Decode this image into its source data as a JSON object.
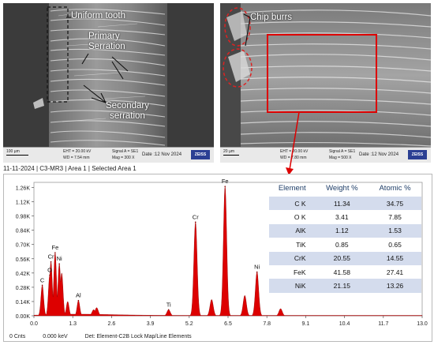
{
  "sem_left": {
    "annotations": {
      "uniform_tooth": "Uniform tooth",
      "primary_serration": "Primary\nSerration",
      "secondary_serration": "Secondary\nserration"
    },
    "info": {
      "scale": "100 µm",
      "eht": "EHT = 20.00 kV",
      "wd": "WD = 7.54 mm",
      "signal": "Signal A = SE1",
      "mag": "Mag =    300 X",
      "date": "Date :12 Nov 2024",
      "logo": "ZEISS"
    }
  },
  "sem_right": {
    "annotations": {
      "chip_burrs": "Chip burrs"
    },
    "info": {
      "scale": "20 µm",
      "eht": "EHT = 20.00 kV",
      "wd": "WD = 7.80 mm",
      "signal": "Signal A = SE1",
      "mag": "Mag =    500 X",
      "date": "Date :12 Nov 2024",
      "logo": "ZEISS"
    }
  },
  "eds": {
    "header": "11-11-2024 | C3-MR3 | Area 1 | Selected Area 1",
    "footer": {
      "counts": "0 Cnts",
      "energy": "0.000 keV",
      "det": "Det: Element-C2B Lock Map/Line Elements"
    }
  },
  "chart_data": {
    "type": "area",
    "x_ticks": [
      "0.0",
      "1.3",
      "2.6",
      "3.9",
      "5.2",
      "6.5",
      "7.8",
      "9.1",
      "10.4",
      "11.7",
      "13.0"
    ],
    "y_ticks": [
      "0.00K",
      "0.14K",
      "0.28K",
      "0.42K",
      "0.56K",
      "0.70K",
      "0.84K",
      "0.98K",
      "1.12K",
      "1.26K"
    ],
    "xlim": [
      0,
      13.0
    ],
    "ylim": [
      0,
      1.31
    ],
    "peaks": [
      {
        "label": "C",
        "x": 0.28,
        "y": 0.3
      },
      {
        "label": "O",
        "x": 0.53,
        "y": 0.4
      },
      {
        "label": "Cr",
        "x": 0.57,
        "y": 0.53
      },
      {
        "label": "Fe",
        "x": 0.71,
        "y": 0.62
      },
      {
        "label": "Ni",
        "x": 0.85,
        "y": 0.51
      },
      {
        "label": "Al",
        "x": 1.49,
        "y": 0.15
      },
      {
        "label": "Ti",
        "x": 4.51,
        "y": 0.06
      },
      {
        "label": "Cr",
        "x": 5.41,
        "y": 0.92
      },
      {
        "label": "Fe",
        "x": 6.4,
        "y": 1.27
      },
      {
        "label": "Ni",
        "x": 7.47,
        "y": 0.43
      }
    ],
    "minor_peaks": [
      {
        "x": 0.71,
        "y": 0.62
      },
      {
        "x": 0.93,
        "y": 0.42
      },
      {
        "x": 1.13,
        "y": 0.14
      },
      {
        "x": 2.0,
        "y": 0.06
      },
      {
        "x": 2.1,
        "y": 0.08
      },
      {
        "x": 5.95,
        "y": 0.16
      },
      {
        "x": 7.06,
        "y": 0.2
      },
      {
        "x": 8.26,
        "y": 0.07
      }
    ],
    "table": {
      "headers": [
        "Element",
        "Weight %",
        "Atomic %"
      ],
      "rows": [
        [
          "C K",
          "11.34",
          "34.75"
        ],
        [
          "O K",
          "3.41",
          "7.85"
        ],
        [
          "AlK",
          "1.12",
          "1.53"
        ],
        [
          "TiK",
          "0.85",
          "0.65"
        ],
        [
          "CrK",
          "20.55",
          "14.55"
        ],
        [
          "FeK",
          "41.58",
          "27.41"
        ],
        [
          "NiK",
          "21.15",
          "13.26"
        ]
      ]
    },
    "colors": {
      "spectrum": "#dd0000",
      "highlight": "#d00000",
      "table_header": "#1f3e68"
    }
  }
}
